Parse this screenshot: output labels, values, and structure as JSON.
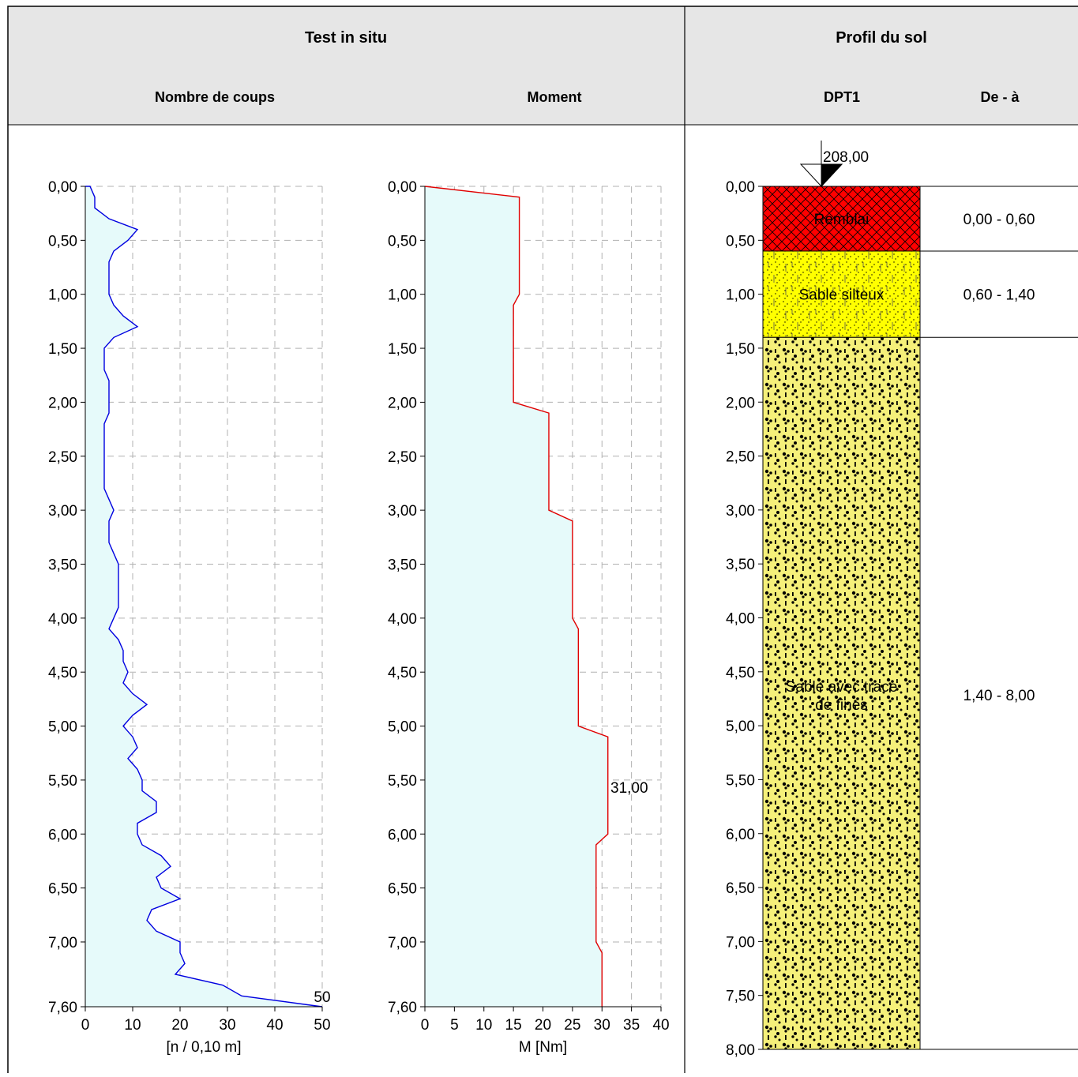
{
  "header": {
    "test_title": "Test in situ",
    "profile_title": "Profil du sol",
    "blows_col": "Nombre de coups",
    "moment_col": "Moment",
    "profile_col": "DPT1",
    "range_col": "De - à"
  },
  "colors": {
    "header_bg": "#e6e6e6",
    "fill": "#e6fafa",
    "blows_line": "#0000e0",
    "moment_line": "#e00000",
    "remblai": "#ff0000",
    "sable_silteux": "#ffff00",
    "sable_fines": "#f5f07a"
  },
  "chart_data": [
    {
      "type": "line",
      "name": "Nombre de coups",
      "xlabel": "[n / 0,10 m]",
      "xlim": [
        0,
        50
      ],
      "xticks": [
        0,
        10,
        20,
        30,
        40,
        50
      ],
      "ylim": [
        0,
        7.6
      ],
      "yticks": [
        "0,00",
        "0,50",
        "1,00",
        "1,50",
        "2,00",
        "2,50",
        "3,00",
        "3,50",
        "4,00",
        "4,50",
        "5,00",
        "5,50",
        "6,00",
        "6,50",
        "7,00",
        "7,60"
      ],
      "annotation": "50",
      "points": [
        [
          0,
          0
        ],
        [
          1,
          0
        ],
        [
          2,
          0.1
        ],
        [
          2,
          0.2
        ],
        [
          5,
          0.3
        ],
        [
          11,
          0.4
        ],
        [
          9,
          0.5
        ],
        [
          6,
          0.6
        ],
        [
          5,
          0.7
        ],
        [
          5,
          0.8
        ],
        [
          5,
          0.9
        ],
        [
          5,
          1.0
        ],
        [
          6,
          1.1
        ],
        [
          8,
          1.2
        ],
        [
          11,
          1.3
        ],
        [
          6,
          1.4
        ],
        [
          4,
          1.5
        ],
        [
          4,
          1.6
        ],
        [
          4,
          1.7
        ],
        [
          5,
          1.8
        ],
        [
          5,
          1.9
        ],
        [
          5,
          2.0
        ],
        [
          5,
          2.1
        ],
        [
          4,
          2.2
        ],
        [
          4,
          2.3
        ],
        [
          4,
          2.4
        ],
        [
          4,
          2.5
        ],
        [
          4,
          2.6
        ],
        [
          4,
          2.7
        ],
        [
          4,
          2.8
        ],
        [
          5,
          2.9
        ],
        [
          6,
          3.0
        ],
        [
          5,
          3.1
        ],
        [
          5,
          3.2
        ],
        [
          5,
          3.3
        ],
        [
          6,
          3.4
        ],
        [
          7,
          3.5
        ],
        [
          7,
          3.6
        ],
        [
          7,
          3.7
        ],
        [
          7,
          3.8
        ],
        [
          7,
          3.9
        ],
        [
          6,
          4.0
        ],
        [
          5,
          4.1
        ],
        [
          7,
          4.2
        ],
        [
          8,
          4.3
        ],
        [
          8,
          4.4
        ],
        [
          9,
          4.5
        ],
        [
          8,
          4.6
        ],
        [
          10,
          4.7
        ],
        [
          13,
          4.8
        ],
        [
          10,
          4.9
        ],
        [
          8,
          5.0
        ],
        [
          10,
          5.1
        ],
        [
          11,
          5.2
        ],
        [
          9,
          5.3
        ],
        [
          11,
          5.4
        ],
        [
          12,
          5.5
        ],
        [
          12,
          5.6
        ],
        [
          15,
          5.7
        ],
        [
          15,
          5.8
        ],
        [
          11,
          5.9
        ],
        [
          11,
          6.0
        ],
        [
          12,
          6.1
        ],
        [
          16,
          6.2
        ],
        [
          18,
          6.3
        ],
        [
          15,
          6.4
        ],
        [
          16,
          6.5
        ],
        [
          20,
          6.6
        ],
        [
          14,
          6.7
        ],
        [
          13,
          6.8
        ],
        [
          15,
          6.9
        ],
        [
          20,
          7.0
        ],
        [
          20,
          7.1
        ],
        [
          21,
          7.2
        ],
        [
          19,
          7.3
        ],
        [
          29,
          7.4
        ],
        [
          33,
          7.5
        ],
        [
          50,
          7.6
        ]
      ]
    },
    {
      "type": "line",
      "name": "Moment",
      "xlabel": "M [Nm]",
      "xlim": [
        0,
        40
      ],
      "xticks": [
        0,
        5,
        10,
        15,
        20,
        25,
        30,
        35,
        40
      ],
      "ylim": [
        0,
        7.6
      ],
      "yticks": [
        "0,00",
        "0,50",
        "1,00",
        "1,50",
        "2,00",
        "2,50",
        "3,00",
        "3,50",
        "4,00",
        "4,50",
        "5,00",
        "5,50",
        "6,00",
        "6,50",
        "7,00",
        "7,60"
      ],
      "annotation": "31,00",
      "points": [
        [
          0,
          0
        ],
        [
          16,
          0.1
        ],
        [
          16,
          1.0
        ],
        [
          15,
          1.1
        ],
        [
          15,
          2.0
        ],
        [
          21,
          2.1
        ],
        [
          21,
          3.0
        ],
        [
          25,
          3.1
        ],
        [
          25,
          4.0
        ],
        [
          26,
          4.1
        ],
        [
          26,
          5.0
        ],
        [
          31,
          5.1
        ],
        [
          31,
          6.0
        ],
        [
          29,
          6.1
        ],
        [
          29,
          7.0
        ],
        [
          30,
          7.1
        ],
        [
          30,
          7.6
        ]
      ]
    },
    {
      "type": "table",
      "name": "Profil du sol",
      "top_elevation": "208,00",
      "ylim": [
        0,
        8.0
      ],
      "yticks": [
        "0,00",
        "0,50",
        "1,00",
        "1,50",
        "2,00",
        "2,50",
        "3,00",
        "3,50",
        "4,00",
        "4,50",
        "5,00",
        "5,50",
        "6,00",
        "6,50",
        "7,00",
        "7,50",
        "8,00"
      ],
      "layers": [
        {
          "name": "Remblai",
          "from": 0.0,
          "to": 0.6,
          "range": "0,00 - 0,60",
          "color": "#ff0000",
          "pattern": "cross"
        },
        {
          "name": "Sable silteux",
          "from": 0.6,
          "to": 1.4,
          "range": "0,60 - 1,40",
          "color": "#ffff00",
          "pattern": "dots"
        },
        {
          "name": "Sable avec trace de fines",
          "from": 1.4,
          "to": 8.0,
          "range": "1,40 - 8,00",
          "color": "#f5f07a",
          "pattern": "gravel"
        }
      ]
    }
  ]
}
